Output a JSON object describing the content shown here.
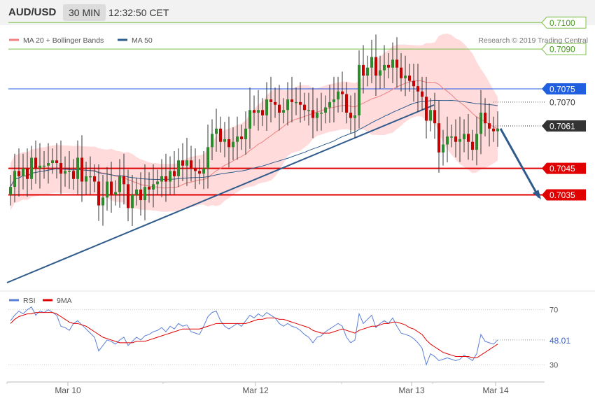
{
  "header": {
    "symbol": "AUD/USD",
    "timeframe": "30 MIN",
    "time": "12:32:50 CET"
  },
  "legend_top": [
    {
      "label": "MA 20 + Bollinger Bands",
      "color": "#f08080"
    },
    {
      "label": "MA 50",
      "color": "#2f5b8c"
    }
  ],
  "legend_bottom": [
    {
      "label": "RSI",
      "color": "#5b7fd6"
    },
    {
      "label": "9MA",
      "color": "#e00000"
    }
  ],
  "credit": "Research © 2019 Trading Central",
  "price_levels": [
    {
      "value": 0.71,
      "label": "0.7100",
      "color": "#7cc04a",
      "style": "solid",
      "tag": "outline-green"
    },
    {
      "value": 0.709,
      "label": "0.7090",
      "color": "#7cc04a",
      "style": "solid",
      "tag": "outline-green"
    },
    {
      "value": 0.7075,
      "label": "0.7075",
      "color": "#1f5fe0",
      "style": "solid",
      "tag": "filled-blue"
    },
    {
      "value": 0.707,
      "label": "0.7070",
      "color": "#555555",
      "style": "dotted",
      "tag": "plain"
    },
    {
      "value": 0.7061,
      "label": "0.7061",
      "color": "#333333",
      "style": "dotted",
      "tag": "filled-dark"
    },
    {
      "value": 0.7045,
      "label": "0.7045",
      "color": "#e00000",
      "style": "solid",
      "tag": "filled-red"
    },
    {
      "value": 0.7035,
      "label": "0.7035",
      "color": "#e00000",
      "style": "solid",
      "tag": "filled-red"
    }
  ],
  "rsi_panel": {
    "levels": [
      "70",
      "30"
    ],
    "current_label": "48.01"
  },
  "chart_data": {
    "type": "candlestick",
    "x_tick_labels": [
      "Mar 10",
      "Mar 12",
      "Mar 13",
      "Mar 14"
    ],
    "price_range": [
      0.7,
      0.7108
    ],
    "rsi_range": [
      20,
      80
    ],
    "colors": {
      "up": "#2d8a2d",
      "down": "#c80000",
      "bands": "#ffcccc",
      "ma20": "#f08080",
      "ma50": "#2f5b8c",
      "trendline": "#2f5b8c",
      "arrow": "#2f5b8c"
    },
    "closes": [
      0.7038,
      0.7044,
      0.7042,
      0.7045,
      0.7041,
      0.7049,
      0.7045,
      0.7046,
      0.7046,
      0.7047,
      0.7048,
      0.7047,
      0.7043,
      0.7044,
      0.7044,
      0.7041,
      0.7049,
      0.704,
      0.7042,
      0.7042,
      0.704,
      0.7031,
      0.7034,
      0.704,
      0.7035,
      0.7036,
      0.7042,
      0.7039,
      0.703,
      0.7035,
      0.7037,
      0.7033,
      0.7038,
      0.7037,
      0.7039,
      0.704,
      0.7042,
      0.704,
      0.7044,
      0.7042,
      0.7048,
      0.7046,
      0.7048,
      0.7045,
      0.7044,
      0.7043,
      0.7045,
      0.7053,
      0.7058,
      0.706,
      0.7055,
      0.7056,
      0.7053,
      0.7055,
      0.7057,
      0.7056,
      0.706,
      0.7067,
      0.7066,
      0.7067,
      0.7065,
      0.7071,
      0.707,
      0.7069,
      0.7066,
      0.7067,
      0.7071,
      0.707,
      0.707,
      0.7069,
      0.7067,
      0.7067,
      0.7064,
      0.7066,
      0.7066,
      0.7068,
      0.707,
      0.7071,
      0.7074,
      0.7073,
      0.7066,
      0.7064,
      0.7065,
      0.7084,
      0.708,
      0.7083,
      0.7087,
      0.708,
      0.7082,
      0.7084,
      0.7083,
      0.7086,
      0.7083,
      0.7079,
      0.708,
      0.7078,
      0.7076,
      0.7074,
      0.7072,
      0.7063,
      0.7067,
      0.7062,
      0.7051,
      0.7054,
      0.7057,
      0.7057,
      0.7055,
      0.7056,
      0.7058,
      0.7055,
      0.7052,
      0.7058,
      0.7066,
      0.7062,
      0.706,
      0.7059,
      0.706
    ],
    "rsi": [
      62,
      66,
      69,
      67,
      70,
      72,
      66,
      69,
      68,
      70,
      68,
      66,
      58,
      57,
      55,
      60,
      62,
      59,
      56,
      53,
      50,
      40,
      44,
      48,
      47,
      45,
      48,
      50,
      44,
      47,
      50,
      48,
      51,
      52,
      54,
      55,
      57,
      54,
      58,
      56,
      60,
      58,
      59,
      54,
      53,
      52,
      58,
      65,
      68,
      69,
      62,
      58,
      56,
      58,
      60,
      58,
      62,
      66,
      64,
      67,
      65,
      68,
      66,
      64,
      60,
      58,
      60,
      58,
      57,
      55,
      52,
      50,
      46,
      50,
      51,
      54,
      56,
      58,
      60,
      58,
      50,
      46,
      48,
      67,
      60,
      63,
      66,
      57,
      60,
      62,
      60,
      64,
      58,
      53,
      52,
      51,
      49,
      46,
      42,
      30,
      38,
      36,
      33,
      34,
      35,
      34,
      33,
      34,
      37,
      35,
      33,
      38,
      52,
      47,
      46,
      45,
      48
    ],
    "rsi_ma9": [
      60,
      63,
      65,
      66,
      67,
      67,
      68,
      68,
      68,
      68,
      68,
      67,
      65,
      63,
      61,
      60,
      60,
      59,
      58,
      56,
      54,
      52,
      50,
      49,
      48,
      47,
      46,
      46,
      46,
      46,
      47,
      47,
      47,
      48,
      49,
      50,
      51,
      52,
      53,
      54,
      55,
      56,
      56,
      56,
      56,
      56,
      57,
      58,
      59,
      60,
      60,
      60,
      60,
      60,
      60,
      60,
      60,
      61,
      62,
      63,
      63,
      64,
      64,
      64,
      63,
      63,
      62,
      61,
      60,
      59,
      58,
      57,
      55,
      54,
      53,
      53,
      53,
      54,
      55,
      56,
      55,
      54,
      53,
      55,
      56,
      57,
      58,
      58,
      59,
      60,
      60,
      61,
      61,
      60,
      59,
      57,
      56,
      54,
      52,
      48,
      45,
      43,
      41,
      39,
      38,
      37,
      36,
      36,
      36,
      36,
      35,
      35,
      37,
      39,
      41,
      43,
      45
    ]
  }
}
